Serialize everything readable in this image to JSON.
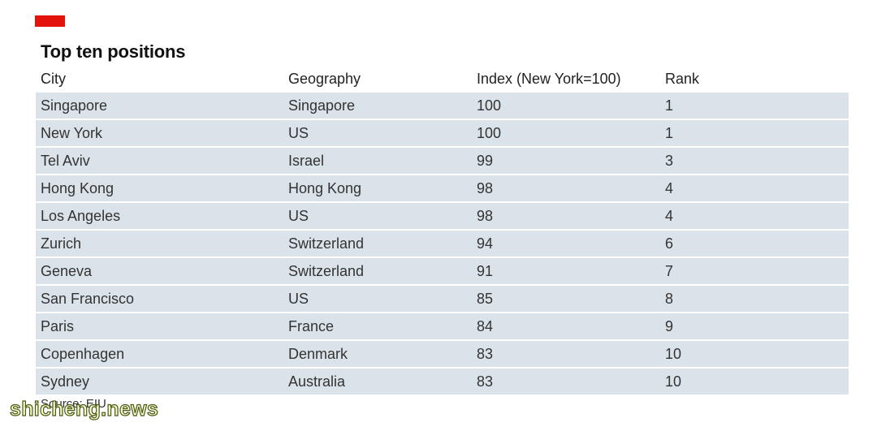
{
  "chart_data": {
    "type": "table",
    "title": "Top ten positions",
    "columns": [
      "City",
      "Geography",
      "Index (New York=100)",
      "Rank"
    ],
    "rows": [
      [
        "Singapore",
        "Singapore",
        "100",
        "1"
      ],
      [
        "New York",
        "US",
        "100",
        "1"
      ],
      [
        "Tel Aviv",
        "Israel",
        "99",
        "3"
      ],
      [
        "Hong Kong",
        "Hong Kong",
        "98",
        "4"
      ],
      [
        "Los Angeles",
        "US",
        "98",
        "4"
      ],
      [
        "Zurich",
        "Switzerland",
        "94",
        "6"
      ],
      [
        "Geneva",
        "Switzerland",
        "91",
        "7"
      ],
      [
        "San Francisco",
        "US",
        "85",
        "8"
      ],
      [
        "Paris",
        "France",
        "84",
        "9"
      ],
      [
        "Copenhagen",
        "Denmark",
        "83",
        "10"
      ],
      [
        "Sydney",
        "Australia",
        "83",
        "10"
      ]
    ],
    "source": "Source: EIU"
  },
  "watermark": "shicheng.news",
  "colors": {
    "accent": "#e3120b",
    "row_background": "#dbe3ea"
  }
}
